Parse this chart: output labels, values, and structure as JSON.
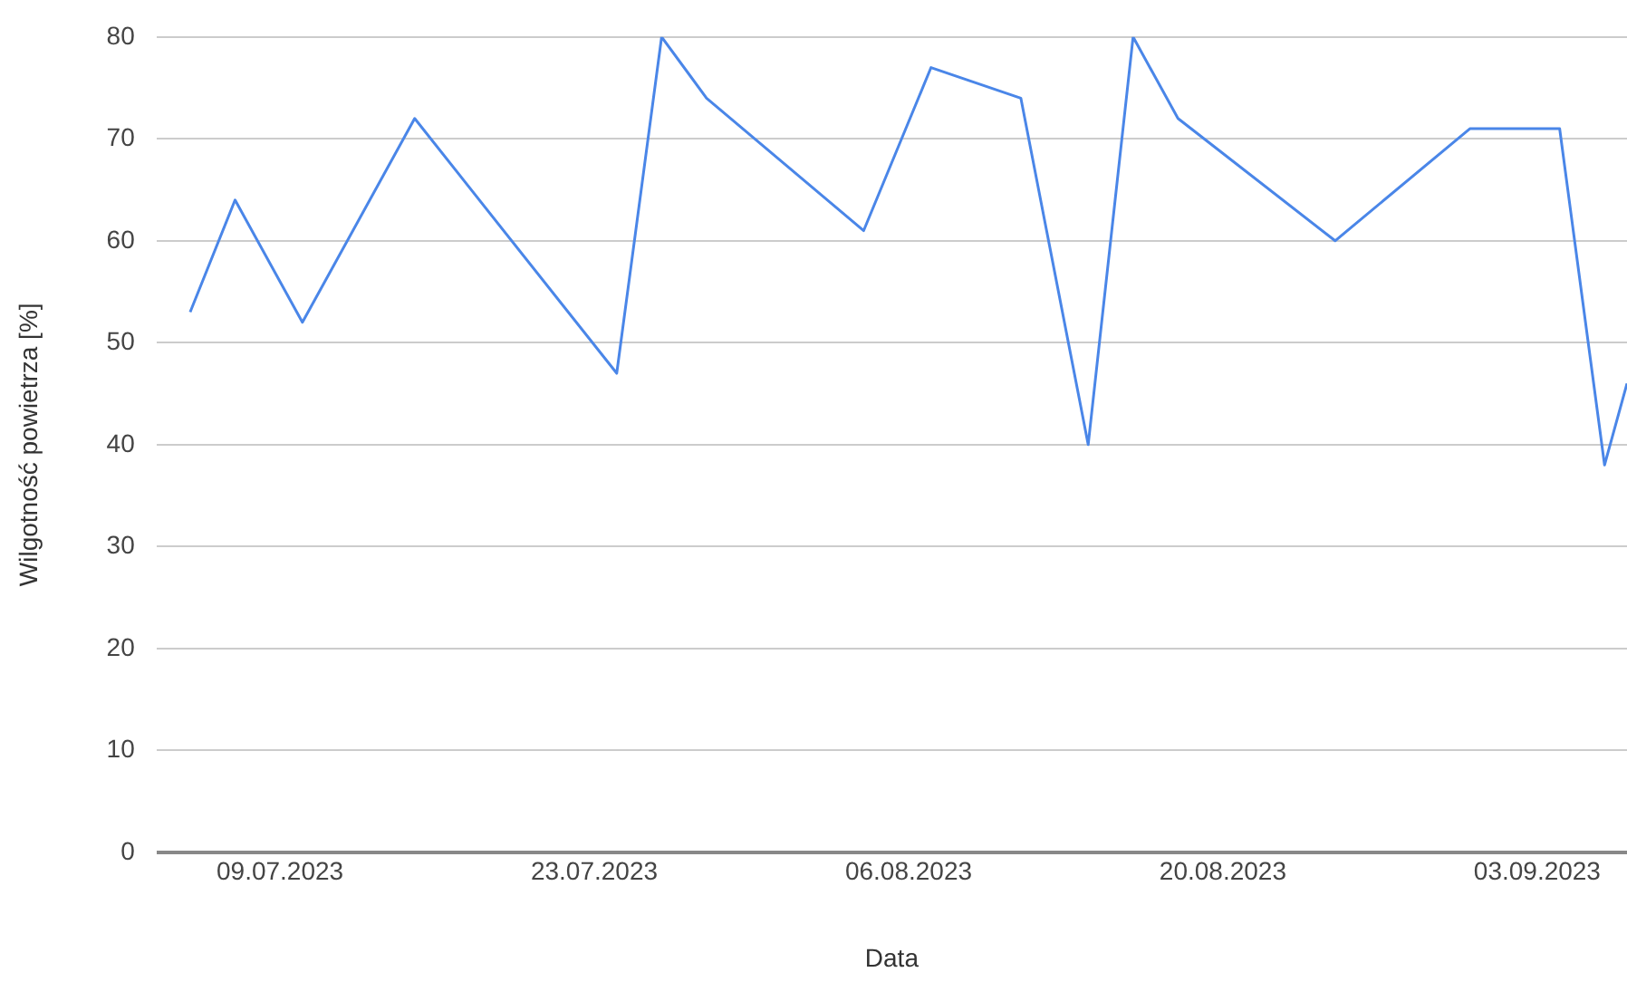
{
  "chart_data": {
    "type": "line",
    "xlabel": "Data",
    "ylabel": "Wilgotność powietrza [%]",
    "x": [
      "2023-07-05",
      "2023-07-07",
      "2023-07-10",
      "2023-07-15",
      "2023-07-24",
      "2023-07-26",
      "2023-07-28",
      "2023-08-04",
      "2023-08-07",
      "2023-08-11",
      "2023-08-14",
      "2023-08-16",
      "2023-08-18",
      "2023-08-25",
      "2023-08-31",
      "2023-09-04",
      "2023-09-06",
      "2023-09-07"
    ],
    "series": [
      {
        "color": "#4a86e8",
        "values": [
          53,
          64,
          52,
          72,
          47,
          80,
          74,
          61,
          77,
          74,
          40,
          80,
          72,
          60,
          71,
          71,
          38,
          46
        ]
      }
    ],
    "xlim": [
      "2023-07-03T12:00",
      "2023-09-07"
    ],
    "xticks": [
      {
        "value": "2023-07-09",
        "label": "09.07.2023"
      },
      {
        "value": "2023-07-23",
        "label": "23.07.2023"
      },
      {
        "value": "2023-08-06",
        "label": "06.08.2023"
      },
      {
        "value": "2023-08-20",
        "label": "20.08.2023"
      },
      {
        "value": "2023-09-03",
        "label": "03.09.2023"
      }
    ],
    "ylim": [
      0,
      80
    ],
    "yticks": [
      0,
      10,
      20,
      30,
      40,
      50,
      60,
      70,
      80
    ],
    "grid": "y",
    "legend": false,
    "marker": "none",
    "line_style": "solid"
  }
}
